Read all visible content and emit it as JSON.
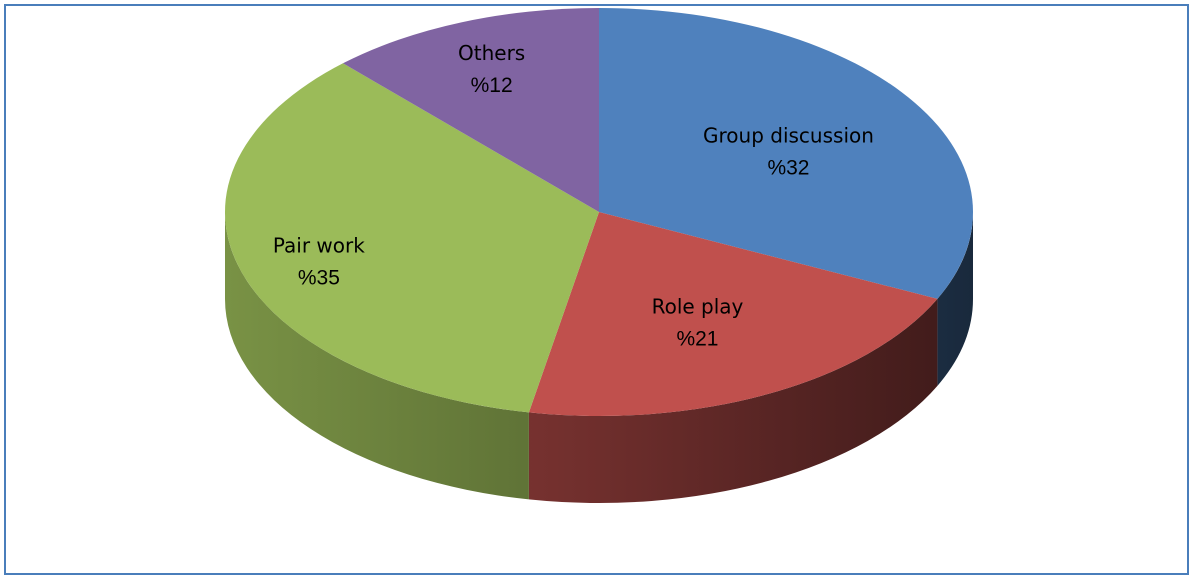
{
  "chart_data": {
    "type": "pie",
    "title": "",
    "slices": [
      {
        "label": "Group discussion",
        "value": 32,
        "value_label": "%32",
        "color": "#4f81bd"
      },
      {
        "label": "Role play",
        "value": 21,
        "value_label": "%21",
        "color": "#c0504d"
      },
      {
        "label": "Pair work",
        "value": 35,
        "value_label": "%35",
        "color": "#9bbb59"
      },
      {
        "label": "Others",
        "value": 12,
        "value_label": "%12",
        "color": "#8064a2"
      }
    ],
    "style": "3d-exploded-none",
    "legend": "none"
  }
}
